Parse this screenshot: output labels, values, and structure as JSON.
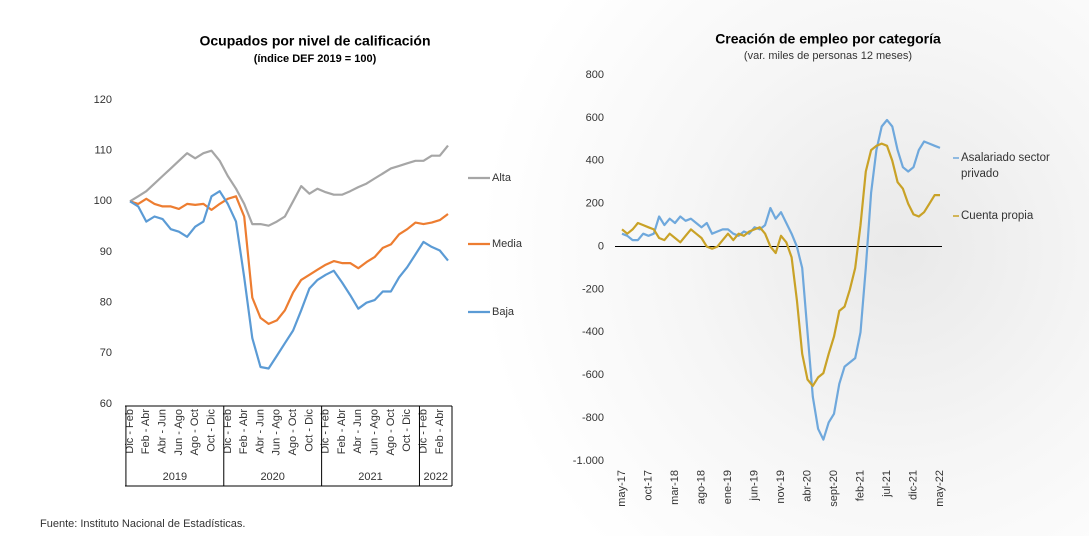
{
  "chart_data": [
    {
      "type": "line",
      "title": "Ocupados por nivel de calificación",
      "subtitle": "(índice DEF 2019 = 100)",
      "categories": [
        "Dic - Feb",
        null,
        "Feb - Abr",
        null,
        "Abr - Jun",
        null,
        "Jun - Ago",
        null,
        "Ago - Oct",
        null,
        "Oct - Dic",
        null,
        "Dic - Feb",
        null,
        "Feb - Abr",
        null,
        "Abr - Jun",
        null,
        "Jun - Ago",
        null,
        "Ago - Oct",
        null,
        "Oct - Dic",
        null,
        "Dic - Feb",
        null,
        "Feb - Abr",
        null,
        "Abr - Jun",
        null,
        "Jun - Ago",
        null,
        "Ago - Oct",
        null,
        "Oct - Dic",
        null,
        "Dic - Feb",
        null,
        "Feb - Abr",
        null
      ],
      "groups": [
        "2019",
        "2020",
        "2021",
        "2022"
      ],
      "ylim": [
        60,
        120
      ],
      "yticks": [
        60,
        70,
        80,
        90,
        100,
        110,
        120
      ],
      "grid": false,
      "series": [
        {
          "name": "Alta",
          "color": "#a6a6a6",
          "values": [
            100,
            101,
            102,
            103.5,
            105,
            106.5,
            108,
            109.5,
            108.5,
            109.5,
            110,
            108,
            105,
            102.5,
            99.5,
            95.5,
            95.5,
            95.2,
            96,
            97,
            100,
            103,
            101.5,
            102.5,
            101.8,
            101.3,
            101.3,
            102,
            102.8,
            103.5,
            104.5,
            105.5,
            106.5,
            107,
            107.5,
            108,
            108,
            109,
            109,
            111
          ]
        },
        {
          "name": "Media",
          "color": "#ed7d31",
          "values": [
            100,
            99.5,
            100.5,
            99.5,
            99,
            99,
            98.5,
            99.5,
            99.3,
            99.5,
            98.3,
            99.5,
            100.5,
            101,
            97,
            81,
            77,
            75.8,
            76.5,
            78.5,
            82,
            84.5,
            85.5,
            86.5,
            87.5,
            88.2,
            87.8,
            87.8,
            86.8,
            88,
            89,
            90.8,
            91.5,
            93.5,
            94.5,
            95.8,
            95.5,
            95.8,
            96.3,
            97.5
          ]
        },
        {
          "name": "Baja",
          "color": "#5b9bd5",
          "values": [
            100,
            99,
            96,
            97,
            96.5,
            94.5,
            94,
            93,
            95,
            96,
            101,
            102,
            99.5,
            96,
            85,
            73,
            67.3,
            67,
            69.5,
            72,
            74.5,
            78.5,
            82.8,
            84.5,
            85.5,
            86.3,
            84,
            81.5,
            78.8,
            80,
            80.5,
            82.2,
            82.2,
            85,
            87,
            89.5,
            92,
            91,
            90.3,
            88.3
          ]
        }
      ]
    },
    {
      "type": "line",
      "title": "Creación de empleo por categoría",
      "subtitle": "(var. miles de personas 12 meses)",
      "categories": [
        "may-17",
        null,
        null,
        null,
        null,
        "oct-17",
        null,
        null,
        null,
        null,
        "mar-18",
        null,
        null,
        null,
        null,
        "ago-18",
        null,
        null,
        null,
        null,
        "ene-19",
        null,
        null,
        null,
        null,
        "jun-19",
        null,
        null,
        null,
        null,
        "nov-19",
        null,
        null,
        null,
        null,
        "abr-20",
        null,
        null,
        null,
        null,
        "sept-20",
        null,
        null,
        null,
        null,
        "feb-21",
        null,
        null,
        null,
        null,
        "jul-21",
        null,
        null,
        null,
        null,
        "dic-21",
        null,
        null,
        null,
        null,
        "may-22"
      ],
      "ylim": [
        -1000,
        800
      ],
      "yticks": [
        {
          "value": -1000,
          "label": "-1.000"
        },
        -800,
        -600,
        -400,
        -200,
        0,
        200,
        400,
        600,
        800
      ],
      "grid": false,
      "series": [
        {
          "name": "Asalariado sector privado",
          "color": "#6fa8dc",
          "values": [
            60,
            50,
            30,
            30,
            60,
            50,
            60,
            140,
            100,
            130,
            110,
            140,
            120,
            130,
            110,
            90,
            110,
            60,
            70,
            80,
            80,
            60,
            50,
            70,
            60,
            90,
            80,
            100,
            180,
            130,
            160,
            110,
            60,
            0,
            -100,
            -400,
            -700,
            -850,
            -900,
            -820,
            -780,
            -640,
            -560,
            -540,
            -520,
            -400,
            -100,
            250,
            450,
            560,
            590,
            560,
            450,
            370,
            350,
            370,
            450,
            490,
            480,
            470,
            460
          ]
        },
        {
          "name": "Cuenta propia",
          "color": "#c9a227",
          "values": [
            80,
            60,
            80,
            110,
            100,
            90,
            80,
            40,
            30,
            60,
            40,
            20,
            50,
            80,
            60,
            40,
            0,
            -10,
            0,
            30,
            60,
            30,
            60,
            50,
            70,
            80,
            90,
            60,
            0,
            -30,
            50,
            20,
            -50,
            -250,
            -500,
            -620,
            -650,
            -610,
            -590,
            -500,
            -420,
            -300,
            -280,
            -200,
            -100,
            100,
            350,
            450,
            470,
            480,
            470,
            400,
            300,
            270,
            200,
            150,
            140,
            160,
            200,
            240,
            240
          ]
        }
      ]
    }
  ],
  "footer": "Fuente: Instituto Nacional de Estadísticas."
}
